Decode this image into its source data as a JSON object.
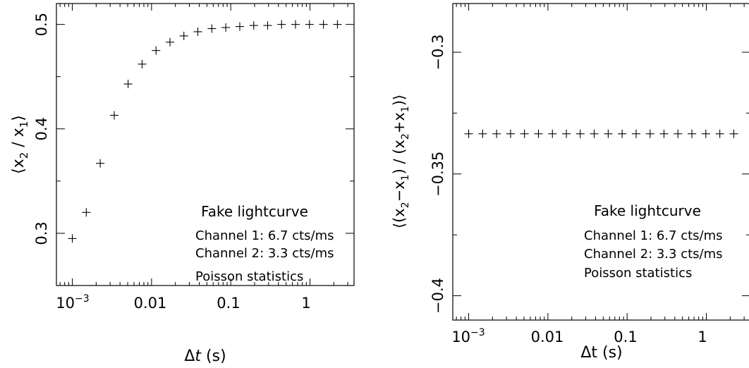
{
  "chart_data": [
    {
      "type": "scatter",
      "xscale": "log",
      "xlim": [
        0.00063,
        3.6
      ],
      "ylim": [
        0.25,
        0.52
      ],
      "xlabel": "Δt (s)",
      "ylabel": "⟨x2 / x1⟩",
      "grid": false,
      "xtick_labels": [
        "10−3",
        "0.01",
        "0.1",
        "1"
      ],
      "yticks": [
        0.3,
        0.4,
        0.5
      ],
      "ytick_labels": [
        "0.3",
        "0.4",
        "0.5"
      ],
      "annotations": [
        "Fake lightcurve",
        "Channel 1: 6.7 cts/ms",
        "Channel 2: 3.3 cts/ms",
        "Poisson statistics"
      ],
      "x": [
        0.001,
        0.0015,
        0.00225,
        0.00338,
        0.00506,
        0.0076,
        0.0114,
        0.0171,
        0.0256,
        0.0384,
        0.0577,
        0.0865,
        0.13,
        0.195,
        0.292,
        0.438,
        0.657,
        0.985,
        1.48,
        2.22
      ],
      "y": [
        0.295,
        0.32,
        0.367,
        0.413,
        0.443,
        0.462,
        0.475,
        0.483,
        0.489,
        0.493,
        0.496,
        0.497,
        0.498,
        0.499,
        0.499,
        0.5,
        0.5,
        0.5,
        0.5,
        0.5
      ]
    },
    {
      "type": "scatter",
      "xscale": "log",
      "xlim": [
        0.00063,
        3.6
      ],
      "ylim": [
        -0.41,
        -0.28
      ],
      "xlabel": "Δt (s)",
      "ylabel": "⟨(x2−x1) / (x2+x1)⟩",
      "grid": false,
      "xtick_labels": [
        "10−3",
        "0.01",
        "0.1",
        "1"
      ],
      "yticks": [
        -0.3,
        -0.35,
        -0.4
      ],
      "ytick_labels": [
        "−0.3",
        "−0.35",
        "−0.4"
      ],
      "annotations": [
        "Fake lightcurve",
        "Channel 1: 6.7 cts/ms",
        "Channel 2: 3.3 cts/ms",
        "Poisson statistics"
      ],
      "x": [
        0.001,
        0.0015,
        0.00225,
        0.00338,
        0.00506,
        0.0076,
        0.0114,
        0.0171,
        0.0256,
        0.0384,
        0.0577,
        0.0865,
        0.13,
        0.195,
        0.292,
        0.438,
        0.657,
        0.985,
        1.48,
        2.22
      ],
      "y": [
        -0.3335,
        -0.3335,
        -0.3335,
        -0.3335,
        -0.3335,
        -0.3335,
        -0.3335,
        -0.3335,
        -0.3335,
        -0.3335,
        -0.3335,
        -0.3335,
        -0.3335,
        -0.3335,
        -0.3335,
        -0.3335,
        -0.3335,
        -0.3335,
        -0.3335,
        -0.3335
      ]
    }
  ]
}
